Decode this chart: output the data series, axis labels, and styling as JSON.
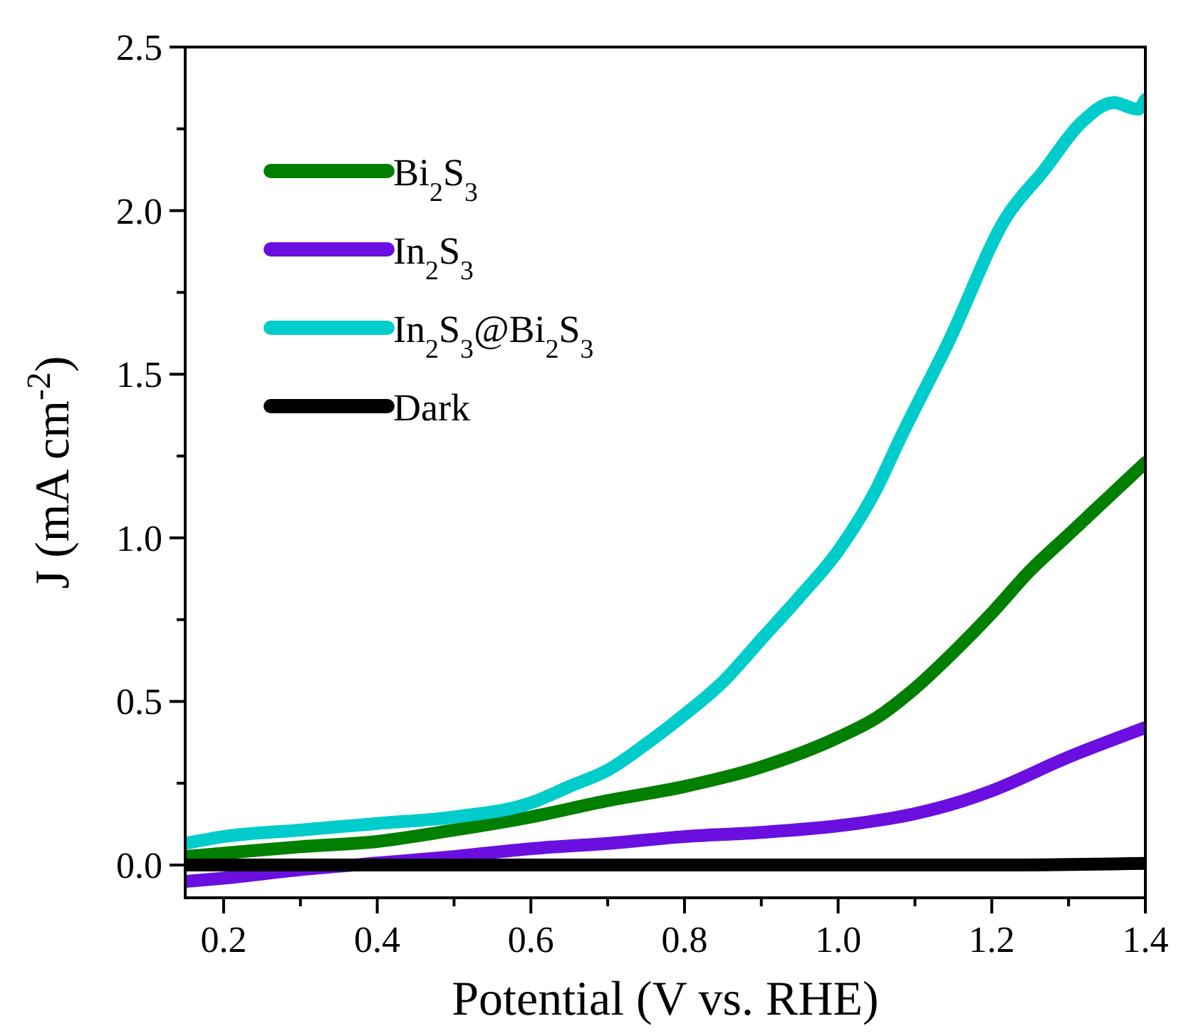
{
  "chart_data": {
    "type": "line",
    "xlabel": "Potential (V vs. RHE)",
    "ylabel": "J (mA cm$^{-2}$)",
    "xlim": [
      0.15,
      1.4
    ],
    "ylim": [
      -0.1,
      2.5
    ],
    "xticks": [
      0.2,
      {
        "value": 0.3,
        "label": null
      },
      0.4,
      {
        "value": 0.5,
        "label": null
      },
      0.6,
      {
        "value": 0.7,
        "label": null
      },
      0.8,
      {
        "value": 0.9,
        "label": null
      },
      "1.0",
      {
        "value": 1.1,
        "label": null
      },
      1.2,
      {
        "value": 1.3,
        "label": null
      },
      1.4
    ],
    "yticks": [
      {
        "value": 0,
        "label": "0.0"
      },
      {
        "value": 0.25,
        "label": null
      },
      0.5,
      {
        "value": 0.75,
        "label": null
      },
      {
        "value": 1,
        "label": "1.0"
      },
      {
        "value": 1.25,
        "label": null
      },
      1.5,
      {
        "value": 1.75,
        "label": null
      },
      {
        "value": 2,
        "label": "2.0"
      },
      {
        "value": 2.25,
        "label": null
      },
      2.5
    ],
    "legend": "top left",
    "grid": false,
    "marker": "none",
    "line_style": "solid",
    "series": [
      {
        "name": "Bi$_{2}$S$_{3}$",
        "color": "#007f00",
        "x": [
          0.15,
          0.2,
          0.3,
          0.4,
          0.5,
          0.6,
          0.7,
          0.8,
          0.9,
          1.0,
          1.05,
          1.1,
          1.15,
          1.2,
          1.25,
          1.3,
          1.35,
          1.4
        ],
        "values": [
          0.026,
          0.036,
          0.056,
          0.072,
          0.107,
          0.147,
          0.197,
          0.24,
          0.3,
          0.39,
          0.45,
          0.54,
          0.65,
          0.77,
          0.9,
          1.01,
          1.12,
          1.23
        ]
      },
      {
        "name": "In$_{2}$S$_{3}$",
        "color": "#6a0fe0",
        "x": [
          0.15,
          0.2,
          0.3,
          0.4,
          0.5,
          0.6,
          0.7,
          0.8,
          0.9,
          1.0,
          1.1,
          1.15,
          1.2,
          1.3,
          1.4
        ],
        "values": [
          -0.05,
          -0.04,
          -0.014,
          0.006,
          0.026,
          0.05,
          0.066,
          0.087,
          0.1,
          0.12,
          0.157,
          0.187,
          0.227,
          0.33,
          0.42
        ]
      },
      {
        "name": "In$_{2}$S$_{3}$@Bi$_{2}$S$_{3}$",
        "color": "#00cccc",
        "x": [
          0.15,
          0.2,
          0.3,
          0.4,
          0.5,
          0.6,
          0.65,
          0.7,
          0.75,
          0.8,
          0.85,
          0.9,
          0.95,
          1.0,
          1.05,
          1.08,
          1.144,
          1.219,
          1.267,
          1.317,
          1.359,
          1.39,
          1.4
        ],
        "values": [
          0.066,
          0.087,
          0.107,
          0.127,
          0.147,
          0.19,
          0.24,
          0.29,
          0.37,
          0.46,
          0.56,
          0.69,
          0.82,
          0.96,
          1.15,
          1.3,
          1.6,
          1.98,
          2.12,
          2.27,
          2.33,
          2.31,
          2.34
        ]
      },
      {
        "name": "Dark",
        "color": "#000000",
        "x": [
          0.15,
          0.4,
          0.8,
          1.2,
          1.4
        ],
        "values": [
          0,
          0,
          0,
          0,
          0.005
        ]
      }
    ]
  }
}
